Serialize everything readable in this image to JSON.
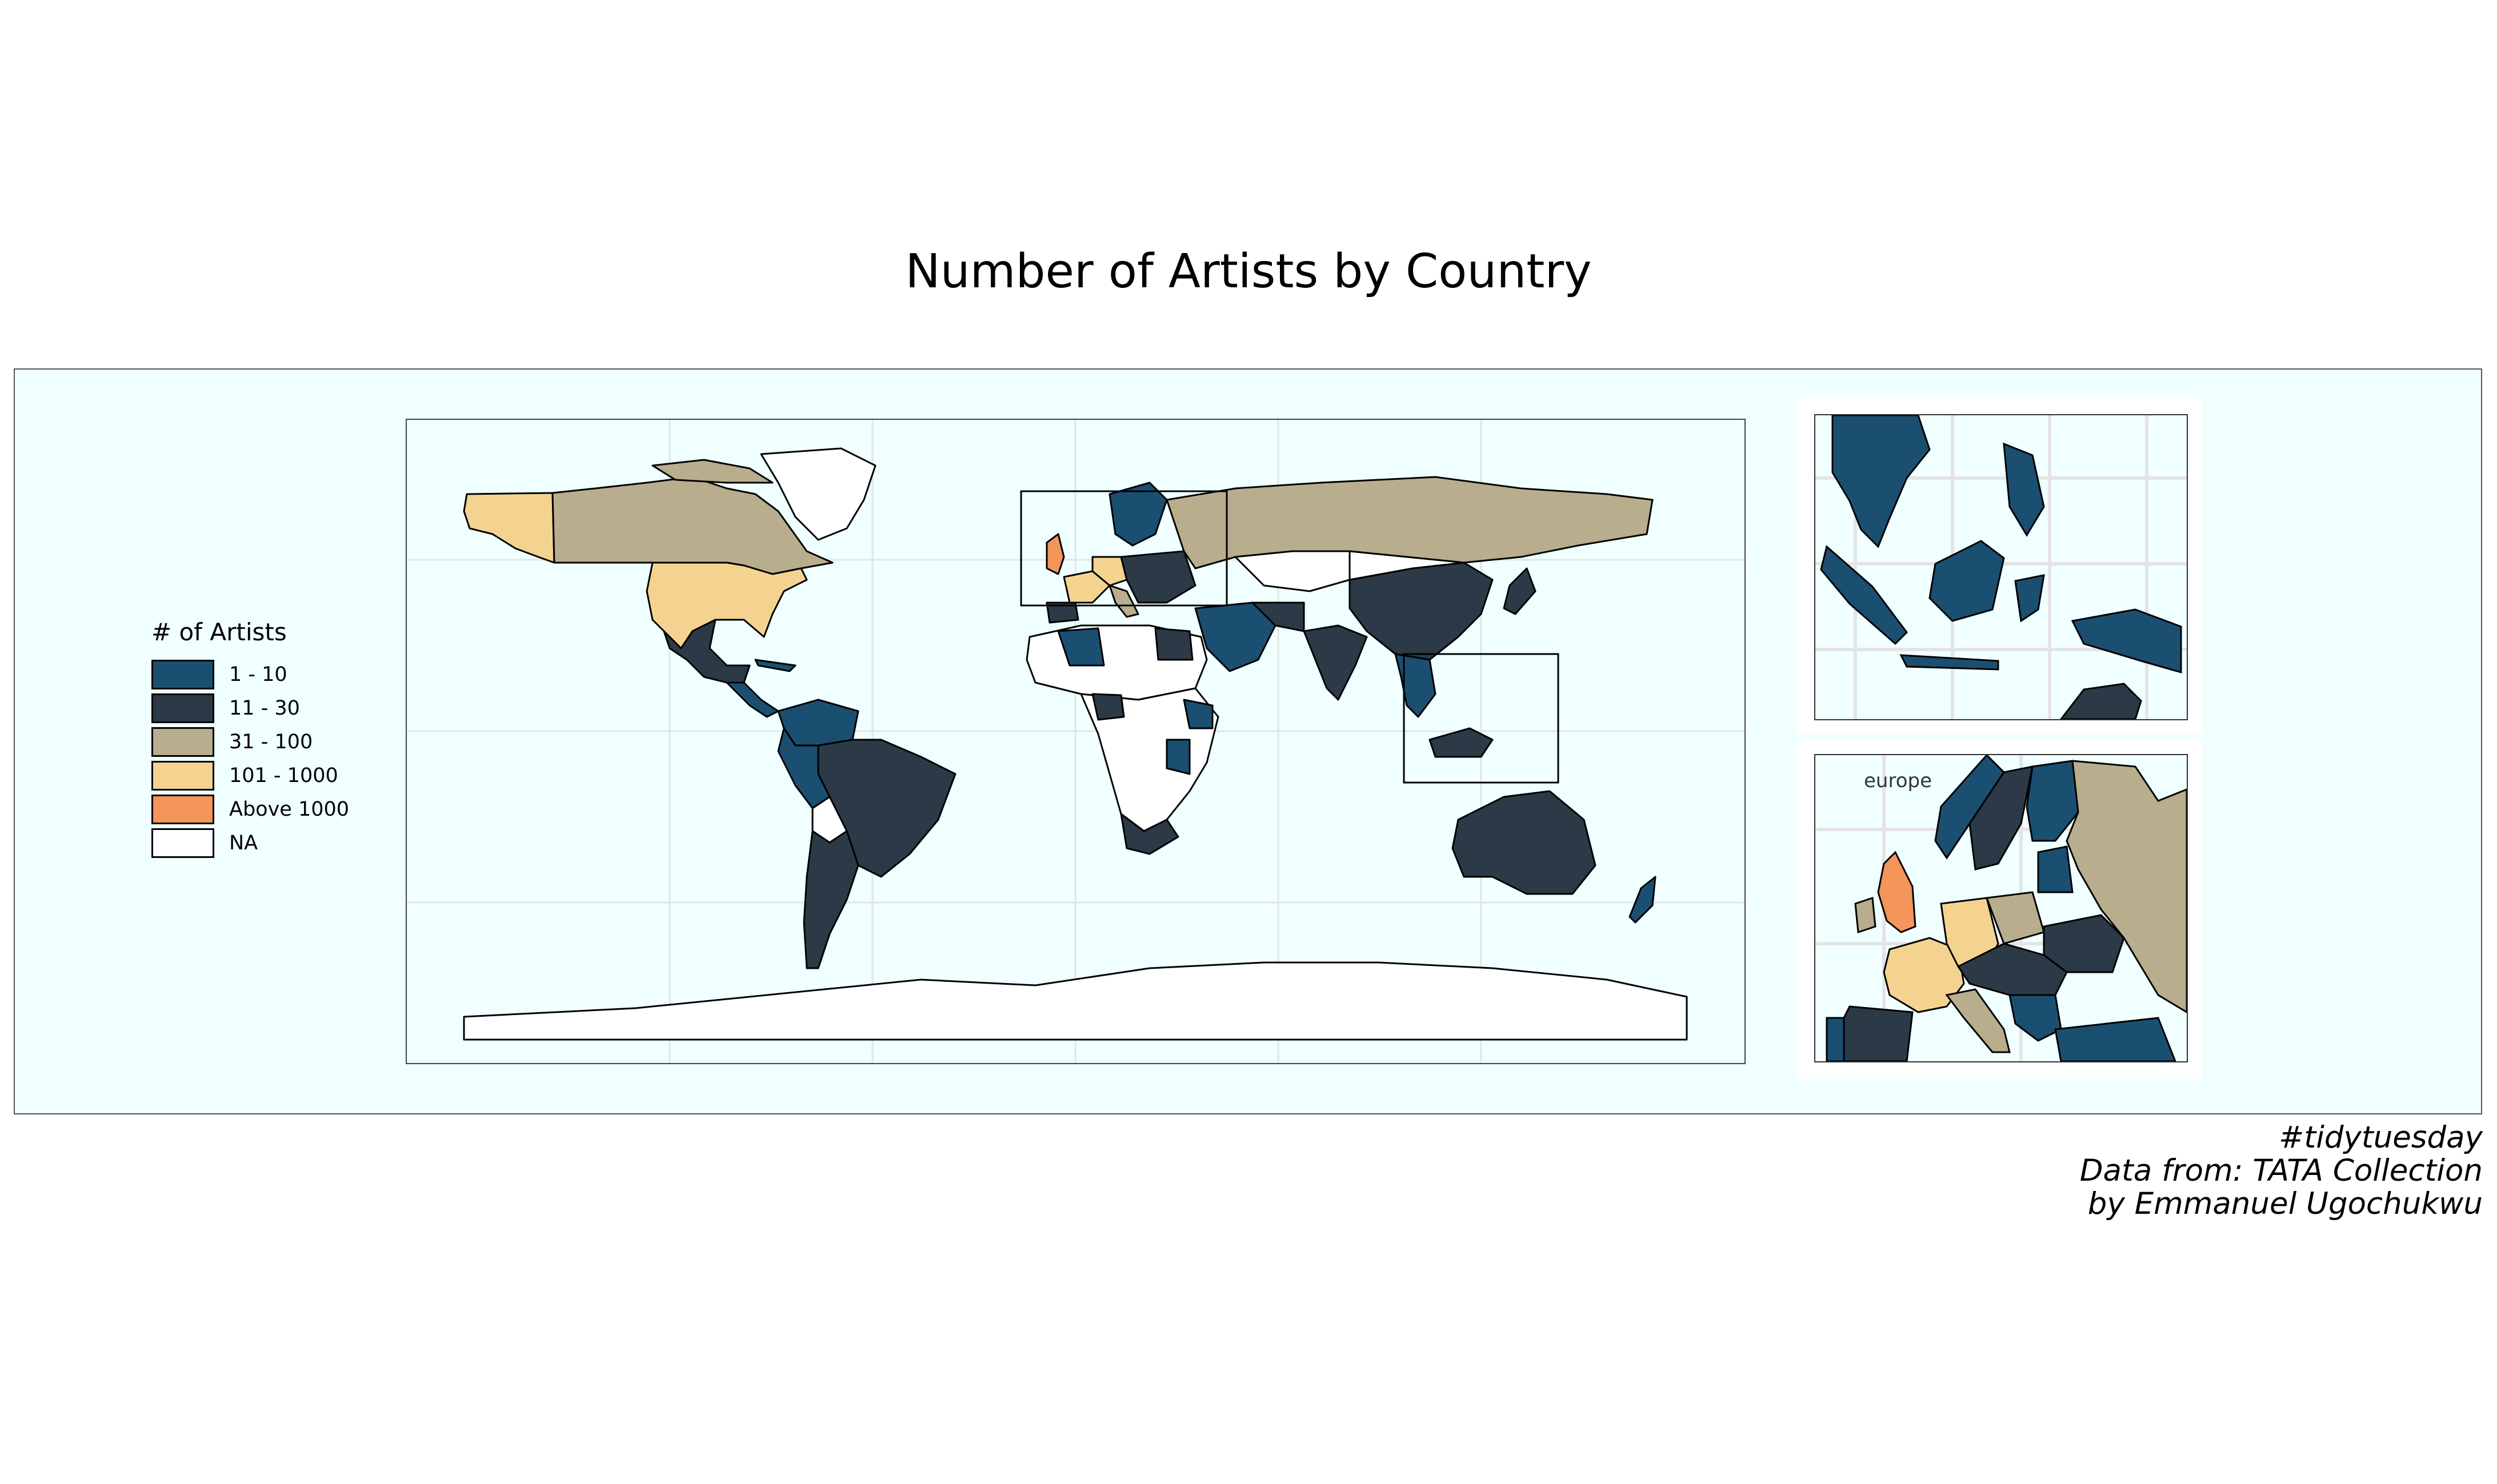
{
  "title": "Number of Artists by Country",
  "legend": {
    "title": "# of Artists",
    "items": [
      {
        "label": "1 - 10",
        "color": "#1b4f72"
      },
      {
        "label": "11 - 30",
        "color": "#2c3a47"
      },
      {
        "label": "31 - 100",
        "color": "#b8ad8c"
      },
      {
        "label": "101 - 1000",
        "color": "#f4d391"
      },
      {
        "label": "Above 1000",
        "color": "#f4955a"
      },
      {
        "label": "NA",
        "color": "#ffffff"
      }
    ]
  },
  "insets": {
    "europe_label": "europe"
  },
  "caption": {
    "line1": "#tidytuesday",
    "line2": "Data from: TATA Collection",
    "line3": "by Emmanuel Ugochukwu"
  },
  "colors": {
    "ocean": "#f0ffff",
    "grid": "#e6e6e6"
  }
}
